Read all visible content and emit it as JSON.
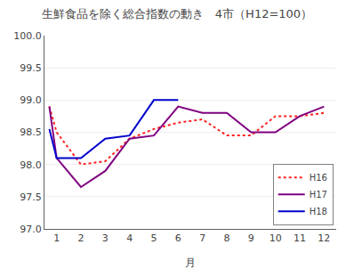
{
  "chart_data": {
    "type": "line",
    "title": "生鮮食品を除く総合指数の動き　4市（H12=100）",
    "xlabel": "月",
    "xlim": [
      0.5,
      12.5
    ],
    "xticks": [
      1,
      2,
      3,
      4,
      5,
      6,
      7,
      8,
      9,
      10,
      11,
      12
    ],
    "ylim": [
      97.0,
      100.0
    ],
    "yticks": [
      {
        "value": 97.0,
        "label": "97.0"
      },
      {
        "value": 97.5,
        "label": "97.5"
      },
      {
        "value": 98.0,
        "label": "98.0"
      },
      {
        "value": 98.5,
        "label": "98.5"
      },
      {
        "value": 99.0,
        "label": "99.0"
      },
      {
        "value": 99.5,
        "label": "99.5"
      },
      {
        "value": 100.0,
        "label": "100.0"
      }
    ],
    "grid": "y",
    "legend": "lower right",
    "series": [
      {
        "name": "H16",
        "color": "#ff2020",
        "line_style": "dotted",
        "x": [
          0.7,
          1,
          2,
          3,
          4,
          5,
          6,
          7,
          8,
          9,
          10,
          11,
          12
        ],
        "values": [
          98.9,
          98.5,
          98.0,
          98.05,
          98.4,
          98.55,
          98.65,
          98.7,
          98.45,
          98.45,
          98.75,
          98.75,
          98.8
        ]
      },
      {
        "name": "H17",
        "color": "#800080",
        "line_style": "solid",
        "x": [
          0.7,
          1,
          2,
          3,
          4,
          5,
          6,
          7,
          8,
          9,
          10,
          11,
          12
        ],
        "values": [
          98.9,
          98.1,
          97.65,
          97.9,
          98.4,
          98.45,
          98.9,
          98.8,
          98.8,
          98.5,
          98.5,
          98.75,
          98.9
        ]
      },
      {
        "name": "H18",
        "color": "#0000cc",
        "line_style": "solid",
        "x": [
          0.7,
          1,
          2,
          3,
          4,
          5,
          6
        ],
        "values": [
          98.55,
          98.1,
          98.1,
          98.4,
          98.45,
          99.0,
          99.0
        ]
      }
    ]
  }
}
